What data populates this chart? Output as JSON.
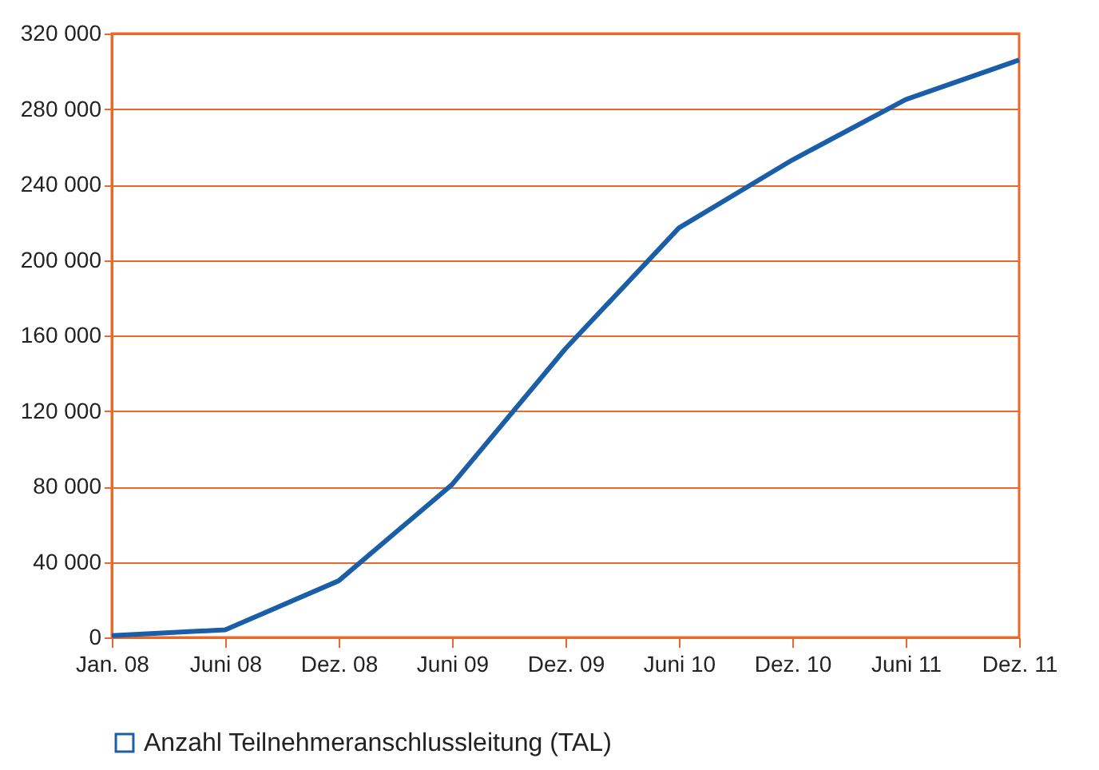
{
  "chart_data": {
    "type": "line",
    "categories": [
      "Jan. 08",
      "Juni 08",
      "Dez. 08",
      "Juni 09",
      "Dez. 09",
      "Juni 10",
      "Dez. 10",
      "Juni 11",
      "Dez. 11"
    ],
    "series": [
      {
        "name": "Anzahl Teilnehmeranschlussleitung (TAL)",
        "color": "#1a5ea8",
        "values": [
          1000,
          4000,
          30000,
          81000,
          153000,
          217000,
          253000,
          285000,
          306000
        ]
      }
    ],
    "ylim": [
      0,
      320000
    ],
    "yticks": [
      0,
      {
        "value": 40000,
        "label": "40 000"
      },
      {
        "value": 80000,
        "label": "80 000"
      },
      {
        "value": 120000,
        "label": "120 000"
      },
      {
        "value": 160000,
        "label": "160 000"
      },
      {
        "value": 200000,
        "label": "200 000"
      },
      {
        "value": 240000,
        "label": "240 000"
      },
      {
        "value": 280000,
        "label": "280 000"
      },
      {
        "value": 320000,
        "label": "320 000"
      }
    ],
    "grid": "y",
    "legend": "bottom left",
    "marker": "none",
    "line_style": "solid"
  }
}
